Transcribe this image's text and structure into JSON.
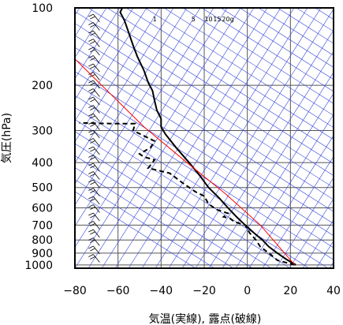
{
  "chart_data": {
    "type": "line",
    "title": "",
    "xlabel": "気温(実線), 露点(破線)",
    "ylabel": "気圧(hPa)",
    "xlim": [
      -80,
      40
    ],
    "ylim": [
      1030,
      100
    ],
    "yscale": "log",
    "x_ticks": [
      -80,
      -60,
      -40,
      -20,
      0,
      20,
      40
    ],
    "x_tick_labels": [
      "−80",
      "−60",
      "−40",
      "−20",
      "0",
      "20",
      "40"
    ],
    "y_ticks": [
      100,
      200,
      300,
      400,
      500,
      600,
      700,
      800,
      900,
      1000
    ],
    "y_tick_labels": [
      "100",
      "200",
      "300",
      "400",
      "500",
      "600",
      "700",
      "800",
      "900",
      "1000"
    ],
    "grid": true,
    "mixing_ratio_labels": [
      {
        "text": "1",
        "x": -43
      },
      {
        "text": "5",
        "x": -25
      },
      {
        "text": "10",
        "x": -18
      },
      {
        "text": "15",
        "x": -14
      },
      {
        "text": "20g",
        "x": -9
      }
    ],
    "series": [
      {
        "kind": "temperature",
        "style": "solid",
        "color": "#000000",
        "points": [
          {
            "t": 22.5,
            "p": 1000
          },
          {
            "t": 18,
            "p": 950
          },
          {
            "t": 14,
            "p": 900
          },
          {
            "t": 10,
            "p": 850
          },
          {
            "t": 7,
            "p": 800
          },
          {
            "t": 3,
            "p": 750
          },
          {
            "t": -1,
            "p": 700
          },
          {
            "t": -5,
            "p": 650
          },
          {
            "t": -9,
            "p": 600
          },
          {
            "t": -13,
            "p": 550
          },
          {
            "t": -18,
            "p": 500
          },
          {
            "t": -22,
            "p": 450
          },
          {
            "t": -27,
            "p": 400
          },
          {
            "t": -33,
            "p": 350
          },
          {
            "t": -38,
            "p": 310
          },
          {
            "t": -40,
            "p": 290
          },
          {
            "t": -40,
            "p": 270
          },
          {
            "t": -42,
            "p": 250
          },
          {
            "t": -43,
            "p": 230
          },
          {
            "t": -44,
            "p": 210
          },
          {
            "t": -46,
            "p": 195
          },
          {
            "t": -48,
            "p": 175
          },
          {
            "t": -51,
            "p": 155
          },
          {
            "t": -53,
            "p": 140
          },
          {
            "t": -55,
            "p": 125
          },
          {
            "t": -57,
            "p": 112
          },
          {
            "t": -59,
            "p": 104
          },
          {
            "t": -58,
            "p": 100
          }
        ]
      },
      {
        "kind": "dewpoint",
        "style": "dashed",
        "color": "#000000",
        "points": [
          {
            "t": 22,
            "p": 1000
          },
          {
            "t": 14,
            "p": 960
          },
          {
            "t": 10,
            "p": 900
          },
          {
            "t": 6,
            "p": 850
          },
          {
            "t": 4,
            "p": 800
          },
          {
            "t": 1,
            "p": 750
          },
          {
            "t": -1,
            "p": 700
          },
          {
            "t": -6,
            "p": 680
          },
          {
            "t": -8,
            "p": 660
          },
          {
            "t": -11,
            "p": 650
          },
          {
            "t": -9,
            "p": 630
          },
          {
            "t": -14,
            "p": 610
          },
          {
            "t": -18,
            "p": 580
          },
          {
            "t": -20,
            "p": 540
          },
          {
            "t": -24,
            "p": 520
          },
          {
            "t": -30,
            "p": 480
          },
          {
            "t": -36,
            "p": 440
          },
          {
            "t": -46,
            "p": 420
          },
          {
            "t": -43,
            "p": 390
          },
          {
            "t": -48,
            "p": 380
          },
          {
            "t": -50,
            "p": 370
          },
          {
            "t": -45,
            "p": 350
          },
          {
            "t": -43,
            "p": 330
          },
          {
            "t": -53,
            "p": 300
          },
          {
            "t": -52,
            "p": 282
          },
          {
            "t": -63,
            "p": 282
          },
          {
            "t": -78,
            "p": 280
          }
        ]
      },
      {
        "kind": "reference",
        "style": "solid",
        "color": "#ff0000",
        "points": [
          {
            "t": 22,
            "p": 1000
          },
          {
            "t": 6,
            "p": 700
          },
          {
            "t": -10,
            "p": 530
          },
          {
            "t": -28,
            "p": 400
          },
          {
            "t": -48,
            "p": 290
          },
          {
            "t": -80,
            "p": 158
          }
        ]
      }
    ],
    "wind_barbs": {
      "color": "#000000",
      "x": -70,
      "count": 30
    }
  }
}
